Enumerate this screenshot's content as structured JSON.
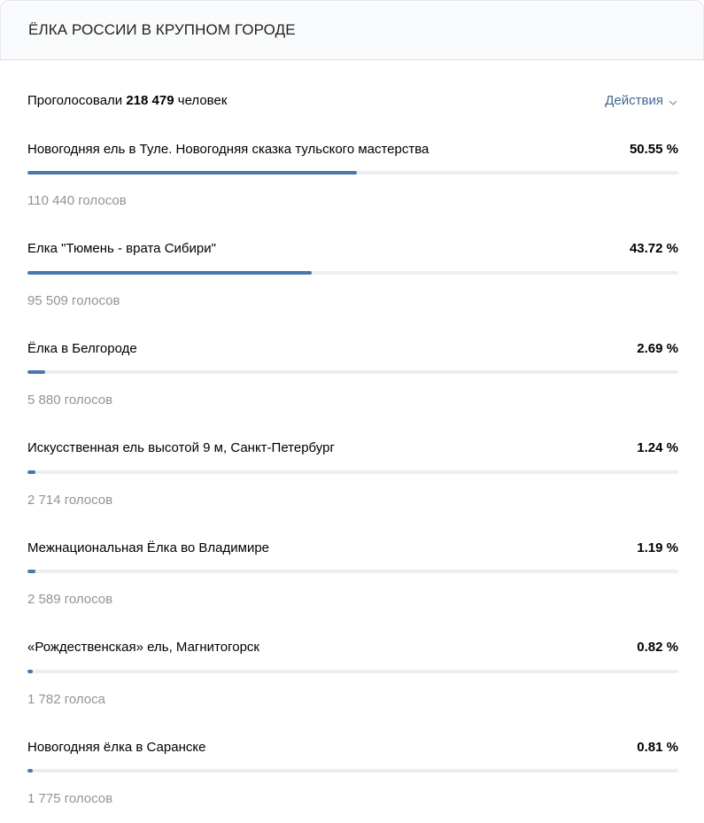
{
  "poll": {
    "title": "ЁЛКА РОССИИ В КРУПНОМ ГОРОДЕ",
    "summary_prefix": "Проголосовали",
    "total_votes": "218 479",
    "summary_suffix": "человек",
    "actions_label": "Действия",
    "accent_color": "#4a76a8",
    "options": [
      {
        "label": "Новогодняя ель в Туле. Новогодняя сказка тульского мастерства",
        "percent_text": "50.55 %",
        "percent": 50.55,
        "votes": "110 440 голосов"
      },
      {
        "label": "Елка \"Тюмень - врата Сибири\"",
        "percent_text": "43.72 %",
        "percent": 43.72,
        "votes": "95 509 голосов"
      },
      {
        "label": "Ёлка в Белгороде",
        "percent_text": "2.69 %",
        "percent": 2.69,
        "votes": "5 880 голосов"
      },
      {
        "label": "Искусственная ель высотой 9 м, Санкт-Петербург",
        "percent_text": "1.24 %",
        "percent": 1.24,
        "votes": "2 714 голосов"
      },
      {
        "label": "Межнациональная Ёлка во Владимире",
        "percent_text": "1.19 %",
        "percent": 1.19,
        "votes": "2 589 голосов"
      },
      {
        "label": "«Рождественская» ель, Магнитогорск",
        "percent_text": "0.82 %",
        "percent": 0.82,
        "votes": "1 782 голоса"
      },
      {
        "label": "Новогодняя ёлка в Саранске",
        "percent_text": "0.81 %",
        "percent": 0.81,
        "votes": "1 775 голосов"
      }
    ]
  },
  "icons": {
    "actions": "chevron-down-icon"
  }
}
